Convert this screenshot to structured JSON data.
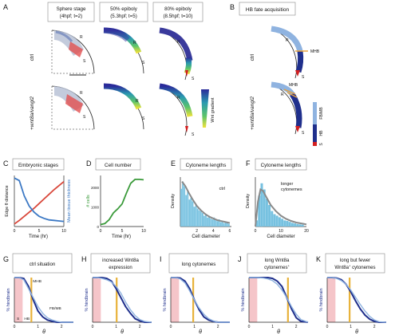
{
  "colors": {
    "edge": "#d9473a",
    "tissue": "#3b78c4",
    "cells": "#3a9a3a",
    "hist": "#76c1e0",
    "fit": "#8a8a8a",
    "navy": "#1f2f8c",
    "lightblue": "#8fb3e0",
    "red": "#d41f1f",
    "yellow": "#e8b23a",
    "pink": "#f5c5c9"
  },
  "panel_a": {
    "letter": "A",
    "columns": [
      {
        "line1": "Sphere stage",
        "line2": "(4hpf; t=2)"
      },
      {
        "line1": "50% epiboly",
        "line2": "(5.3hpf; t=5)"
      },
      {
        "line1": "80% epiboly",
        "line2": "(8.5hpf; t=10)"
      }
    ],
    "rows": [
      "ctrl",
      "+wnt8a/vangl2"
    ],
    "marker_r": "R",
    "marker_s": "S",
    "gradient_label": "Wnt gradient"
  },
  "panel_b": {
    "letter": "B",
    "title": "HB fate acquisition",
    "rows": [
      "ctrl",
      "+wnt8a/vangl2"
    ],
    "mhb": "MHB",
    "legend": [
      "FB/MB",
      "HB",
      "S"
    ]
  },
  "panel_c": {
    "letter": "C",
    "title": "Embryonic stages",
    "ylabel_left": "Edge θ distance",
    "ylabel_right": "Mean tissue thickness",
    "xlabel": "Time (hr)",
    "xticks": [
      "0",
      "5",
      "10"
    ],
    "chart_data": {
      "type": "line",
      "x": [
        0,
        1,
        2,
        3,
        4,
        5,
        6,
        7,
        8,
        9,
        10
      ],
      "series": [
        {
          "values": [
            0.05,
            0.12,
            0.2,
            0.28,
            0.36,
            0.45,
            0.54,
            0.63,
            0.72,
            0.8,
            0.88
          ]
        },
        {
          "values": [
            0.95,
            0.9,
            0.6,
            0.4,
            0.28,
            0.2,
            0.16,
            0.13,
            0.12,
            0.11,
            0.1
          ]
        }
      ],
      "xlim": [
        0,
        10
      ],
      "ylim": [
        0,
        1
      ]
    }
  },
  "panel_d": {
    "letter": "D",
    "title": "Cell number",
    "ylabel": "# cells",
    "xlabel": "Time (hr)",
    "xticks": [
      "0",
      "5",
      "10"
    ],
    "yticks": [
      "0",
      "1000",
      "2000"
    ],
    "chart_data": {
      "type": "line",
      "x": [
        0,
        1,
        2,
        3,
        4,
        5,
        6,
        7,
        8,
        9,
        10
      ],
      "values": [
        100,
        150,
        350,
        700,
        900,
        1150,
        1700,
        2200,
        2400,
        2400,
        2380
      ],
      "xlim": [
        0,
        10
      ],
      "ylim": [
        0,
        2600
      ]
    }
  },
  "panel_e": {
    "letter": "E",
    "title": "Cytoneme lengths",
    "tag": "ctrl",
    "ylabel": "Density",
    "xlabel": "Cell diameter",
    "xticks": [
      "2",
      "4",
      "6"
    ],
    "chart_data": {
      "type": "bar",
      "x": [
        0.1,
        0.3,
        0.5,
        0.7,
        0.9,
        1.1,
        1.3,
        1.5,
        1.7,
        1.9,
        2.1,
        2.3,
        2.5,
        2.7,
        2.9,
        3.1,
        3.3,
        3.5,
        3.7,
        3.9,
        4.1,
        4.3,
        4.5,
        4.7,
        4.9,
        5.1,
        5.3,
        5.5,
        5.7,
        5.9
      ],
      "values": [
        0.42,
        0.5,
        0.45,
        0.35,
        0.4,
        0.3,
        0.32,
        0.28,
        0.22,
        0.25,
        0.2,
        0.18,
        0.17,
        0.15,
        0.12,
        0.14,
        0.1,
        0.12,
        0.09,
        0.08,
        0.1,
        0.07,
        0.06,
        0.08,
        0.05,
        0.06,
        0.04,
        0.05,
        0.04,
        0.03
      ],
      "fit_x": [
        0.2,
        0.6,
        1,
        1.5,
        2,
        2.5,
        3,
        3.5,
        4,
        4.5,
        5,
        5.5,
        6
      ],
      "fit_y": [
        0.5,
        0.45,
        0.38,
        0.3,
        0.23,
        0.18,
        0.14,
        0.11,
        0.09,
        0.07,
        0.06,
        0.05,
        0.04
      ],
      "xlim": [
        0,
        6.2
      ],
      "ylim": [
        0,
        0.55
      ]
    }
  },
  "panel_f": {
    "letter": "F",
    "title": "Cytoneme lengths",
    "tag1": "longer",
    "tag2": "cytonemes",
    "ylabel": "Density",
    "xlabel": "Cell diameter",
    "xticks": [
      "0",
      "10",
      "20"
    ],
    "chart_data": {
      "type": "bar",
      "x": [
        0.5,
        1.5,
        2.5,
        3.5,
        4.5,
        5.5,
        6.5,
        7.5,
        8.5,
        9.5,
        10.5,
        11.5,
        12.5,
        13.5,
        14.5,
        15.5,
        16.5,
        17.5,
        18.5
      ],
      "values": [
        0.02,
        0.1,
        0.14,
        0.12,
        0.09,
        0.07,
        0.05,
        0.04,
        0.035,
        0.03,
        0.025,
        0.02,
        0.018,
        0.015,
        0.012,
        0.01,
        0.008,
        0.007,
        0.006
      ],
      "fit_x": [
        0,
        1,
        2,
        3,
        4,
        5,
        6,
        8,
        10,
        12,
        14,
        16,
        18,
        20
      ],
      "fit_y": [
        0,
        0.08,
        0.12,
        0.115,
        0.1,
        0.085,
        0.07,
        0.05,
        0.035,
        0.025,
        0.018,
        0.013,
        0.01,
        0.007
      ],
      "xlim": [
        0,
        20
      ],
      "ylim": [
        0,
        0.16
      ]
    }
  },
  "panels_gk": [
    {
      "letter": "G",
      "title1": "ctrl situation",
      "title2": "",
      "title3": "",
      "ylabel": "% hindbrain",
      "xlabel": "θ",
      "annotations": [
        "MHB",
        "FB/MB",
        "S",
        "HB"
      ],
      "chart_data": {
        "type": "line",
        "x": [
          0,
          0.2,
          0.4,
          0.6,
          0.8,
          1.0,
          1.2,
          1.4,
          1.6,
          1.8,
          2.0,
          2.2,
          2.5
        ],
        "series": [
          {
            "values": [
              1,
              1,
              0.98,
              0.8,
              0.5,
              0.25,
              0.12,
              0.05,
              0.02,
              0,
              0,
              0,
              0
            ]
          },
          {
            "values": [
              1,
              1,
              0.95,
              0.75,
              0.55,
              0.35,
              0.2,
              0.1,
              0.05,
              0.02,
              0,
              0,
              0
            ]
          }
        ],
        "xlim": [
          0,
          2.5
        ],
        "ylim": [
          0,
          1
        ],
        "shaded_x": [
          0,
          0.35
        ],
        "mhb_x": 0.72
      }
    },
    {
      "letter": "H",
      "title1": "increased Wnt8a",
      "title2": "expression",
      "title3": "",
      "ylabel": "% hindbrain",
      "xlabel": "θ",
      "annotations": [],
      "chart_data": {
        "type": "line",
        "x": [
          0,
          0.2,
          0.4,
          0.6,
          0.8,
          1.0,
          1.2,
          1.4,
          1.6,
          1.8,
          2.0,
          2.2,
          2.5
        ],
        "series": [
          {
            "values": [
              1,
              1,
              1,
              0.98,
              0.92,
              0.75,
              0.55,
              0.35,
              0.2,
              0.08,
              0.03,
              0,
              0
            ]
          },
          {
            "values": [
              1,
              1,
              0.98,
              0.95,
              0.9,
              0.8,
              0.65,
              0.45,
              0.28,
              0.15,
              0.06,
              0.02,
              0
            ]
          }
        ],
        "xlim": [
          0,
          2.5
        ],
        "ylim": [
          0,
          1
        ],
        "shaded_x": [
          0,
          0.35
        ],
        "mhb_x": 1.02
      }
    },
    {
      "letter": "I",
      "title1": "long cytonemes",
      "title2": "",
      "title3": "",
      "ylabel": "% hindbrain",
      "xlabel": "θ",
      "annotations": [],
      "chart_data": {
        "type": "line",
        "x": [
          0,
          0.2,
          0.4,
          0.6,
          0.8,
          1.0,
          1.2,
          1.4,
          1.6,
          1.8,
          2.0,
          2.2,
          2.5
        ],
        "series": [
          {
            "values": [
              1,
              1,
              0.99,
              0.92,
              0.75,
              0.5,
              0.28,
              0.12,
              0.05,
              0.02,
              0,
              0,
              0
            ]
          },
          {
            "values": [
              1,
              1,
              0.97,
              0.88,
              0.7,
              0.5,
              0.32,
              0.18,
              0.08,
              0.03,
              0,
              0,
              0
            ]
          }
        ],
        "xlim": [
          0,
          2.5
        ],
        "ylim": [
          0,
          1
        ],
        "shaded_x": [
          0,
          0.35
        ],
        "mhb_x": 0.95
      }
    },
    {
      "letter": "J",
      "title1": "long Wnt8a",
      "title2": "cytonemes",
      "title3": "+",
      "ylabel": "% hindbrain",
      "xlabel": "θ",
      "annotations": [],
      "chart_data": {
        "type": "line",
        "x": [
          0,
          0.2,
          0.4,
          0.6,
          0.8,
          1.0,
          1.2,
          1.4,
          1.6,
          1.8,
          2.0,
          2.2,
          2.5
        ],
        "series": [
          {
            "values": [
              1,
              1,
              1,
              1,
              1,
              0.98,
              0.92,
              0.8,
              0.55,
              0.3,
              0.1,
              0.02,
              0
            ]
          },
          {
            "values": [
              1,
              1,
              1,
              0.99,
              0.97,
              0.93,
              0.85,
              0.72,
              0.55,
              0.35,
              0.18,
              0.06,
              0
            ]
          }
        ],
        "xlim": [
          0,
          2.5
        ],
        "ylim": [
          0,
          1
        ],
        "shaded_x": [
          0,
          0.35
        ],
        "mhb_x": 1.65
      }
    },
    {
      "letter": "K",
      "title1": "long but fewer",
      "title2": "Wnt8a",
      "title3": "cytonemes",
      "ylabel": "% hindbrain",
      "xlabel": "θ",
      "annotations": [],
      "chart_data": {
        "type": "line",
        "x": [
          0,
          0.2,
          0.4,
          0.6,
          0.8,
          1.0,
          1.2,
          1.4,
          1.6,
          1.8,
          2.0,
          2.2,
          2.5
        ],
        "series": [
          {
            "values": [
              1,
              1,
              0.99,
              0.95,
              0.85,
              0.68,
              0.48,
              0.3,
              0.16,
              0.07,
              0.02,
              0,
              0
            ]
          },
          {
            "values": [
              1,
              1,
              0.98,
              0.93,
              0.85,
              0.72,
              0.56,
              0.4,
              0.25,
              0.13,
              0.05,
              0.01,
              0
            ]
          }
        ],
        "xlim": [
          0,
          2.5
        ],
        "ylim": [
          0,
          1
        ],
        "shaded_x": [
          0,
          0.35
        ],
        "mhb_x": 0.95
      }
    }
  ]
}
